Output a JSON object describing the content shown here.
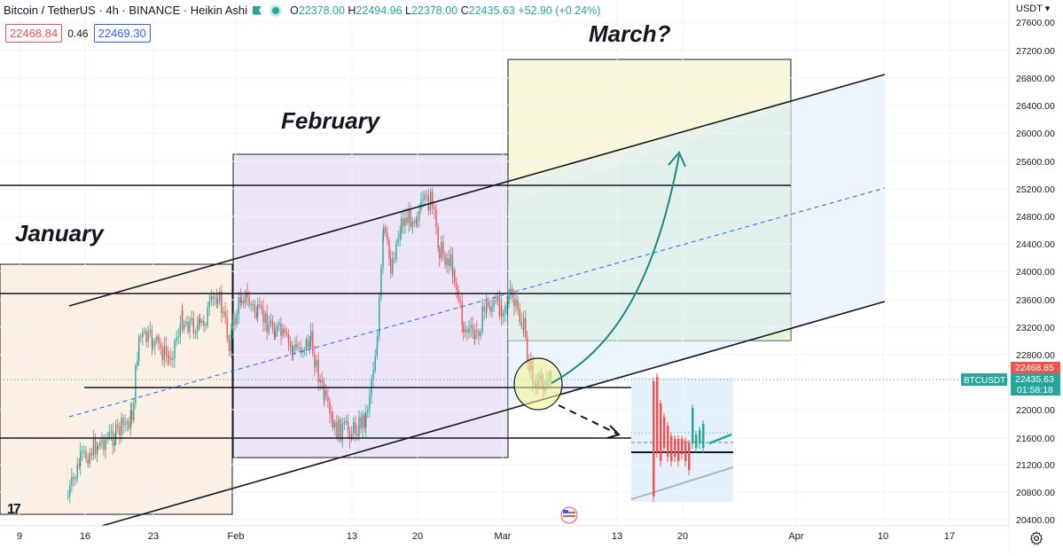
{
  "legend": {
    "symbol_title": "Bitcoin / TetherUS · 4h · BINANCE · Heikin Ashi",
    "open_label": "O",
    "open": "22378.00",
    "high_label": "H",
    "high": "22494.96",
    "low_label": "L",
    "low": "22378.00",
    "close_label": "C",
    "close": "22435.63",
    "change": "+52.90 (+0.24%)"
  },
  "quote": {
    "bid": "22468.84",
    "spread": "0.46",
    "ask": "22469.30"
  },
  "currency_menu": "USDT ▾",
  "price_axis": {
    "labels": [
      "27600.00",
      "27200.00",
      "26800.00",
      "26400.00",
      "26000.00",
      "25600.00",
      "25200.00",
      "24800.00",
      "24400.00",
      "24000.00",
      "23600.00",
      "23200.00",
      "22800.00",
      "22000.00",
      "21600.00",
      "21200.00",
      "20800.00",
      "20400.00"
    ],
    "ask_tag": "22468.85",
    "last_price_tag": "22435.63",
    "countdown": "01:58:18",
    "symbol_tag": "BTCUSDT"
  },
  "time_axis": [
    "9",
    "16",
    "23",
    "Feb",
    "13",
    "20",
    "Mar",
    "13",
    "20",
    "Apr",
    "10",
    "17"
  ],
  "annotations": {
    "january": "January",
    "february": "February",
    "march": "March?"
  },
  "colors": {
    "up": "#26a69a",
    "down": "#ef5350",
    "arrow": "#1a8a7a",
    "channel_mid": "#2962ff"
  },
  "icons": {
    "settings": "gear-icon",
    "logo": "tradingview-logo-icon",
    "events": "us-flag-events-icon"
  },
  "logo_text": "17"
}
